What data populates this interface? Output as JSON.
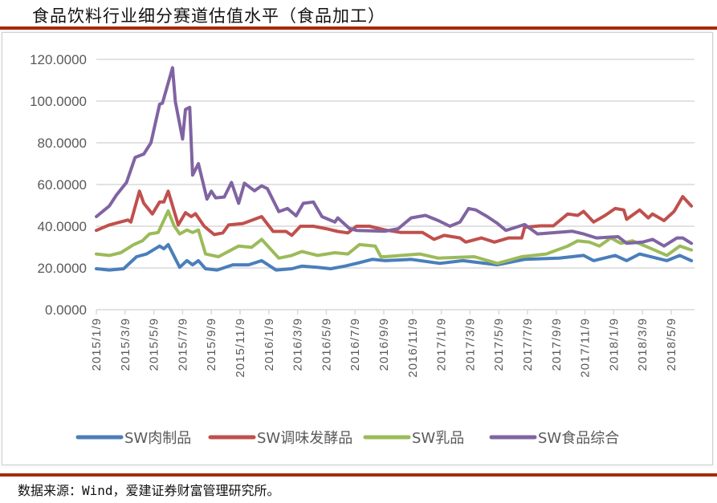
{
  "title": "食品饮料行业细分赛道估值水平（食品加工）",
  "footer": "数据来源：Wind，爱建证券财富管理研究所。",
  "chart_data": {
    "type": "line",
    "title": "食品饮料行业细分赛道估值水平（食品加工）",
    "xlabel": "",
    "ylabel": "",
    "x_unit": "months since 2015/1/9",
    "xlim": [
      0,
      41.6
    ],
    "ylim": [
      0,
      120
    ],
    "grid": true,
    "legend_position": "bottom",
    "y_ticks": [
      "0.0000",
      "20.0000",
      "40.0000",
      "60.0000",
      "80.0000",
      "100.0000",
      "120.0000"
    ],
    "x_ticks": [
      "2015/1/9",
      "2015/3/9",
      "2015/5/9",
      "2015/7/9",
      "2015/9/9",
      "2015/11/9",
      "2016/1/9",
      "2016/3/9",
      "2016/5/9",
      "2016/7/9",
      "2016/9/9",
      "2016/11/9",
      "2017/1/9",
      "2017/3/9",
      "2017/5/9",
      "2017/7/9",
      "2017/9/9",
      "2017/11/9",
      "2018/1/9",
      "2018/3/9",
      "2018/5/9"
    ],
    "series": [
      {
        "name": "SW肉制品",
        "color": "#4a7ebb",
        "points": [
          [
            0,
            19.6
          ],
          [
            0.9,
            19
          ],
          [
            1.9,
            19.6
          ],
          [
            2.8,
            25.4
          ],
          [
            3.5,
            26.7
          ],
          [
            4.4,
            30.5
          ],
          [
            4.7,
            29.2
          ],
          [
            5.0,
            31.2
          ],
          [
            5.8,
            20.3
          ],
          [
            6.3,
            23.5
          ],
          [
            6.7,
            21.5
          ],
          [
            7.1,
            23.5
          ],
          [
            7.6,
            19.6
          ],
          [
            8.4,
            19
          ],
          [
            9.5,
            21.5
          ],
          [
            10.6,
            21.5
          ],
          [
            11.5,
            23.5
          ],
          [
            12.5,
            19
          ],
          [
            13.6,
            19.6
          ],
          [
            14.3,
            20.9
          ],
          [
            15.4,
            20.3
          ],
          [
            16.3,
            19.6
          ],
          [
            17.3,
            20.9
          ],
          [
            18.1,
            22.2
          ],
          [
            19.2,
            24.1
          ],
          [
            20.1,
            23.5
          ],
          [
            21.9,
            24.1
          ],
          [
            23.9,
            22.2
          ],
          [
            25.5,
            23.5
          ],
          [
            27.9,
            21.5
          ],
          [
            29.8,
            24.1
          ],
          [
            32.2,
            24.7
          ],
          [
            33.9,
            26
          ],
          [
            34.6,
            23.5
          ],
          [
            36.1,
            26
          ],
          [
            36.9,
            23.5
          ],
          [
            37.8,
            26.7
          ],
          [
            39.7,
            23.5
          ],
          [
            40.6,
            26
          ],
          [
            41.4,
            23.5
          ]
        ]
      },
      {
        "name": "SW调味发酵品",
        "color": "#c0504d",
        "points": [
          [
            0,
            38
          ],
          [
            0.9,
            40.6
          ],
          [
            2.2,
            43
          ],
          [
            2.4,
            42
          ],
          [
            3.0,
            56.8
          ],
          [
            3.3,
            51
          ],
          [
            3.9,
            45.9
          ],
          [
            4.4,
            51.6
          ],
          [
            4.7,
            51.6
          ],
          [
            5.0,
            56.8
          ],
          [
            5.7,
            40.6
          ],
          [
            6.2,
            46.5
          ],
          [
            6.6,
            44.6
          ],
          [
            6.9,
            46
          ],
          [
            7.5,
            40
          ],
          [
            8.2,
            36
          ],
          [
            8.8,
            36.8
          ],
          [
            9.2,
            40.6
          ],
          [
            10.2,
            41.3
          ],
          [
            11.5,
            44.6
          ],
          [
            12.3,
            37.5
          ],
          [
            13.2,
            37.5
          ],
          [
            13.6,
            35.6
          ],
          [
            14.2,
            40
          ],
          [
            15.1,
            40
          ],
          [
            16,
            38.8
          ],
          [
            16.8,
            37.5
          ],
          [
            17.5,
            36.8
          ],
          [
            18.1,
            40
          ],
          [
            19,
            40
          ],
          [
            20.1,
            38.2
          ],
          [
            21.2,
            37
          ],
          [
            22.7,
            37
          ],
          [
            23.5,
            33.7
          ],
          [
            24.2,
            35.6
          ],
          [
            25.3,
            34.4
          ],
          [
            25.7,
            32.4
          ],
          [
            26.8,
            34.4
          ],
          [
            27.7,
            32.4
          ],
          [
            28.7,
            34.4
          ],
          [
            29.6,
            34.4
          ],
          [
            29.8,
            39.5
          ],
          [
            30.9,
            40.2
          ],
          [
            31.8,
            40.2
          ],
          [
            32.8,
            45.9
          ],
          [
            33.5,
            45.2
          ],
          [
            33.9,
            47.1
          ],
          [
            34.6,
            42
          ],
          [
            35.4,
            45.2
          ],
          [
            36.1,
            48.5
          ],
          [
            36.7,
            47.8
          ],
          [
            36.9,
            43.3
          ],
          [
            37.8,
            47.8
          ],
          [
            38.4,
            44
          ],
          [
            38.7,
            45.9
          ],
          [
            39.5,
            42.7
          ],
          [
            40.2,
            47.1
          ],
          [
            40.8,
            54.2
          ],
          [
            41.4,
            49.7
          ]
        ]
      },
      {
        "name": "SW乳品",
        "color": "#9bbb59",
        "points": [
          [
            0,
            26.7
          ],
          [
            0.9,
            26
          ],
          [
            1.7,
            27.3
          ],
          [
            2.6,
            31.2
          ],
          [
            3.2,
            33
          ],
          [
            3.7,
            36.3
          ],
          [
            4.3,
            37
          ],
          [
            5.0,
            47.3
          ],
          [
            5.4,
            40.3
          ],
          [
            5.8,
            36.3
          ],
          [
            6.3,
            38.2
          ],
          [
            6.7,
            37
          ],
          [
            7.1,
            38.2
          ],
          [
            7.6,
            26.7
          ],
          [
            8.5,
            25.4
          ],
          [
            9.9,
            30.5
          ],
          [
            10.8,
            29.9
          ],
          [
            11.5,
            33.7
          ],
          [
            12.7,
            24.7
          ],
          [
            13.6,
            26
          ],
          [
            14.3,
            27.9
          ],
          [
            15.4,
            26
          ],
          [
            16.6,
            27.3
          ],
          [
            17.5,
            26.7
          ],
          [
            18.3,
            31.2
          ],
          [
            19.4,
            30.5
          ],
          [
            19.8,
            25.4
          ],
          [
            20.1,
            25.4
          ],
          [
            22.5,
            26.7
          ],
          [
            23.8,
            24.7
          ],
          [
            26.3,
            25.4
          ],
          [
            27.9,
            22.2
          ],
          [
            29.6,
            25.4
          ],
          [
            31.3,
            26.7
          ],
          [
            32.8,
            30.5
          ],
          [
            33.5,
            33
          ],
          [
            34.3,
            32.4
          ],
          [
            35,
            30.5
          ],
          [
            35.8,
            34.4
          ],
          [
            36.5,
            31.8
          ],
          [
            37.3,
            33
          ],
          [
            38.4,
            29.9
          ],
          [
            39.7,
            26
          ],
          [
            40.6,
            30.5
          ],
          [
            41.4,
            28.6
          ]
        ]
      },
      {
        "name": "SW食品综合",
        "color": "#8064a2",
        "points": [
          [
            0,
            44.6
          ],
          [
            0.9,
            49.7
          ],
          [
            1.4,
            55
          ],
          [
            2.1,
            61
          ],
          [
            2.7,
            73
          ],
          [
            3.3,
            74.6
          ],
          [
            3.8,
            80
          ],
          [
            4.4,
            98.5
          ],
          [
            4.6,
            99
          ],
          [
            5.3,
            116
          ],
          [
            5.5,
            99.7
          ],
          [
            6.0,
            81.8
          ],
          [
            6.2,
            96
          ],
          [
            6.5,
            97
          ],
          [
            6.7,
            64.5
          ],
          [
            7.1,
            70
          ],
          [
            7.7,
            53
          ],
          [
            8.0,
            56.8
          ],
          [
            8.3,
            53.6
          ],
          [
            8.9,
            54
          ],
          [
            9.4,
            61
          ],
          [
            9.9,
            51
          ],
          [
            10.3,
            60.6
          ],
          [
            11,
            57
          ],
          [
            11.5,
            59.4
          ],
          [
            11.9,
            58
          ],
          [
            12.7,
            47
          ],
          [
            13.3,
            48.5
          ],
          [
            13.9,
            45
          ],
          [
            14.4,
            51
          ],
          [
            15.1,
            51.6
          ],
          [
            15.7,
            44.6
          ],
          [
            16.6,
            42
          ],
          [
            16.8,
            44
          ],
          [
            17.6,
            39
          ],
          [
            18.1,
            38
          ],
          [
            20.1,
            37.6
          ],
          [
            21,
            38.8
          ],
          [
            21.9,
            44
          ],
          [
            22.9,
            45.2
          ],
          [
            23.8,
            42.7
          ],
          [
            24.6,
            40
          ],
          [
            25.3,
            42
          ],
          [
            25.9,
            48.5
          ],
          [
            26.4,
            47.8
          ],
          [
            27.2,
            44.6
          ],
          [
            27.9,
            41.4
          ],
          [
            28.5,
            38
          ],
          [
            29.8,
            40.8
          ],
          [
            30.7,
            36.3
          ],
          [
            33.1,
            37.6
          ],
          [
            33.9,
            36.3
          ],
          [
            34.8,
            34.4
          ],
          [
            36.3,
            35
          ],
          [
            36.9,
            31.8
          ],
          [
            38,
            32.4
          ],
          [
            38.7,
            33.7
          ],
          [
            39.5,
            30.5
          ],
          [
            40.4,
            34.4
          ],
          [
            40.8,
            34.4
          ],
          [
            41.4,
            31.8
          ]
        ]
      }
    ]
  }
}
